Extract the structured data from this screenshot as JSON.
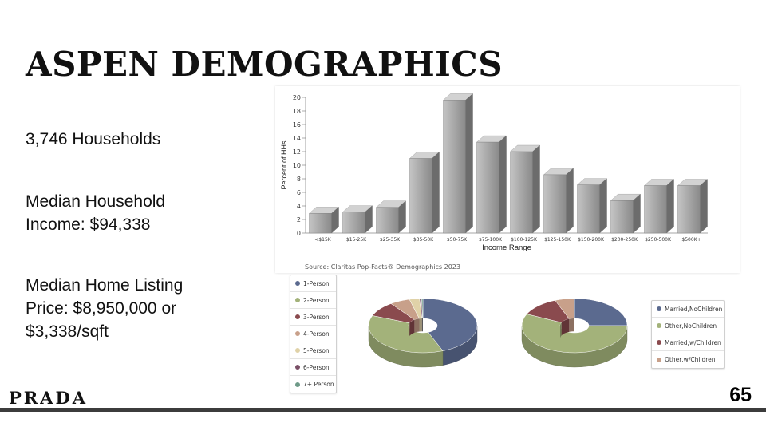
{
  "slide": {
    "title": "ASPEN DEMOGRAPHICS",
    "stats": {
      "households": "3,746 Households",
      "median_income_line1": "Median Household",
      "median_income_line2": "Income: $94,338",
      "median_listing_line1": "Median Home Listing",
      "median_listing_line2": "Price: $8,950,000 or",
      "median_listing_line3": "$3,338/sqft"
    },
    "logo_text": "PRADA",
    "page_number": "65",
    "source": "Source: Claritas Pop-Facts® Demographics 2023"
  },
  "chart_data": [
    {
      "type": "bar",
      "title": "",
      "xlabel": "Income Range",
      "ylabel": "Percent of HHs",
      "ylim": [
        0,
        20
      ],
      "yticks": [
        0,
        2,
        4,
        6,
        8,
        10,
        12,
        14,
        16,
        18,
        20
      ],
      "grid": false,
      "categories": [
        "<$15K",
        "$15-25K",
        "$25-35K",
        "$35-50K",
        "$50-75K",
        "$75-100K",
        "$100-125K",
        "$125-150K",
        "$150-200K",
        "$200-250K",
        "$250-500K",
        "$500K+"
      ],
      "values": [
        2.9,
        3.1,
        3.8,
        11.0,
        19.6,
        13.4,
        12.0,
        8.6,
        7.1,
        4.8,
        7.0,
        7.0
      ],
      "bar_color": "#9a9a9a"
    },
    {
      "type": "pie",
      "title": "",
      "labels": [
        "1-Person",
        "2-Person",
        "3-Person",
        "4-Person",
        "5-Person",
        "6-Person",
        "7+ Person"
      ],
      "values": [
        44,
        37,
        9,
        6,
        3,
        0.6,
        0.4
      ],
      "colors": [
        "#5b6a8f",
        "#a3b27a",
        "#8a4a4e",
        "#c8a08a",
        "#e0d2a8",
        "#7a4f66",
        "#6e9a88"
      ],
      "legend_position": "left"
    },
    {
      "type": "pie",
      "title": "",
      "labels": [
        "Married,NoChildren",
        "Other,NoChildren",
        "Married,w/Children",
        "Other,w/Children"
      ],
      "values": [
        25,
        57,
        12,
        6
      ],
      "colors": [
        "#5b6a8f",
        "#a3b27a",
        "#8a4a4e",
        "#c8a08a"
      ],
      "legend_position": "right"
    }
  ]
}
